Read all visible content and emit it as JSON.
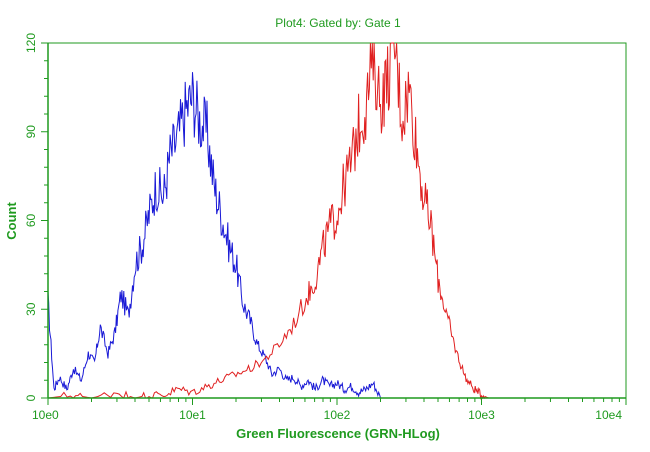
{
  "chart_data": {
    "type": "line",
    "title": "Plot4:  Gated by: Gate 1",
    "xlabel": "Green Fluorescence (GRN-HLog)",
    "ylabel": "Count",
    "x_scale": "log",
    "xlim": [
      1,
      10000
    ],
    "ylim": [
      0,
      120
    ],
    "x_ticks": [
      {
        "value": 1,
        "label": "10e0"
      },
      {
        "value": 10,
        "label": "10e1"
      },
      {
        "value": 100,
        "label": "10e2"
      },
      {
        "value": 1000,
        "label": "10e3"
      },
      {
        "value": 10000,
        "label": "10e4"
      }
    ],
    "y_ticks": [
      {
        "value": 0,
        "label": "0"
      },
      {
        "value": 30,
        "label": "30"
      },
      {
        "value": 60,
        "label": "60"
      },
      {
        "value": 90,
        "label": "90"
      },
      {
        "value": 120,
        "label": "120"
      }
    ],
    "grid": false,
    "colors": {
      "axis": "#1f9a1f",
      "blue_series": "#1a1ad6",
      "red_series": "#e02020"
    },
    "series": [
      {
        "color": "#1a1ad6",
        "x": [
          1.0,
          1.1,
          1.2,
          1.35,
          1.5,
          1.7,
          1.9,
          2.1,
          2.3,
          2.6,
          2.9,
          3.2,
          3.6,
          4.0,
          4.5,
          5.0,
          5.6,
          6.3,
          7.0,
          7.9,
          8.9,
          10.0,
          11.2,
          12.6,
          14.1,
          15.8,
          17.8,
          20.0,
          22.4,
          25.1,
          28.2,
          31.6,
          35.5,
          39.8,
          44.7,
          50.1,
          56.2,
          63.1,
          70.8,
          79.4,
          89.1,
          100,
          112,
          126,
          141,
          158,
          178,
          200
        ],
        "y": [
          33,
          3,
          7,
          3,
          10,
          6,
          15,
          12,
          24,
          15,
          22,
          35,
          28,
          45,
          52,
          62,
          72,
          68,
          82,
          88,
          97,
          102,
          94,
          90,
          72,
          62,
          52,
          45,
          32,
          26,
          18,
          14,
          8,
          10,
          6,
          7,
          4,
          6,
          3,
          6,
          4,
          5,
          3,
          4,
          2,
          3,
          5,
          0
        ]
      },
      {
        "color": "#e02020",
        "x": [
          1.0,
          1.5,
          2.0,
          3.0,
          4.0,
          5.0,
          6.3,
          7.9,
          10.0,
          12.6,
          15.8,
          20.0,
          25.1,
          31.6,
          39.8,
          50.1,
          63.1,
          70.8,
          79.4,
          89.1,
          100,
          112,
          126,
          141,
          158,
          178,
          200,
          224,
          251,
          282,
          316,
          355,
          398,
          447,
          501,
          562,
          631,
          708,
          794,
          891,
          1000,
          1122,
          1259
        ],
        "y": [
          0,
          1,
          0,
          2,
          0,
          1,
          1,
          3,
          2,
          4,
          6,
          8,
          10,
          13,
          18,
          25,
          35,
          40,
          50,
          58,
          62,
          72,
          80,
          92,
          98,
          115,
          100,
          108,
          120,
          95,
          105,
          85,
          68,
          58,
          40,
          30,
          20,
          12,
          6,
          3,
          1,
          0,
          0
        ]
      }
    ]
  }
}
